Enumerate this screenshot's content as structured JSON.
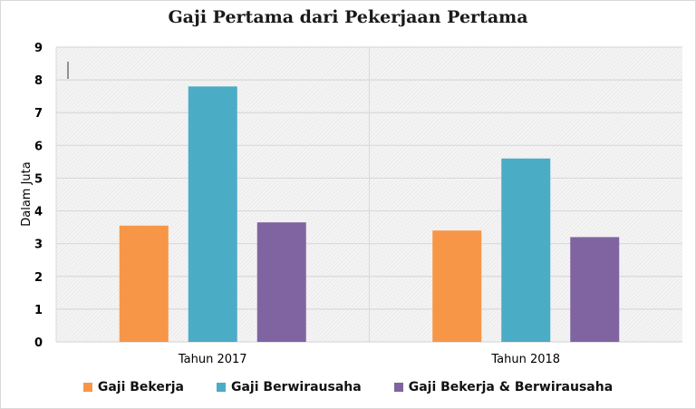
{
  "chart_data": {
    "type": "bar",
    "title": "Gaji Pertama dari Pekerjaan Pertama",
    "xlabel": "",
    "ylabel": "Dalam Juta",
    "ylim": [
      0,
      9
    ],
    "yticks": [
      "0",
      "1",
      "2",
      "3",
      "4",
      "5",
      "6",
      "7",
      "8",
      "9"
    ],
    "grid": true,
    "legend_position": "bottom",
    "categories": [
      "Tahun 2017",
      "Tahun 2018"
    ],
    "series": [
      {
        "name": "Gaji Bekerja",
        "values": [
          3.55,
          3.4
        ],
        "color": "#f79646"
      },
      {
        "name": "Gaji Berwirausaha",
        "values": [
          7.8,
          5.6
        ],
        "color": "#4bacc6"
      },
      {
        "name": "Gaji Bekerja & Berwirausaha",
        "values": [
          3.65,
          3.2
        ],
        "color": "#8064a2"
      }
    ]
  }
}
